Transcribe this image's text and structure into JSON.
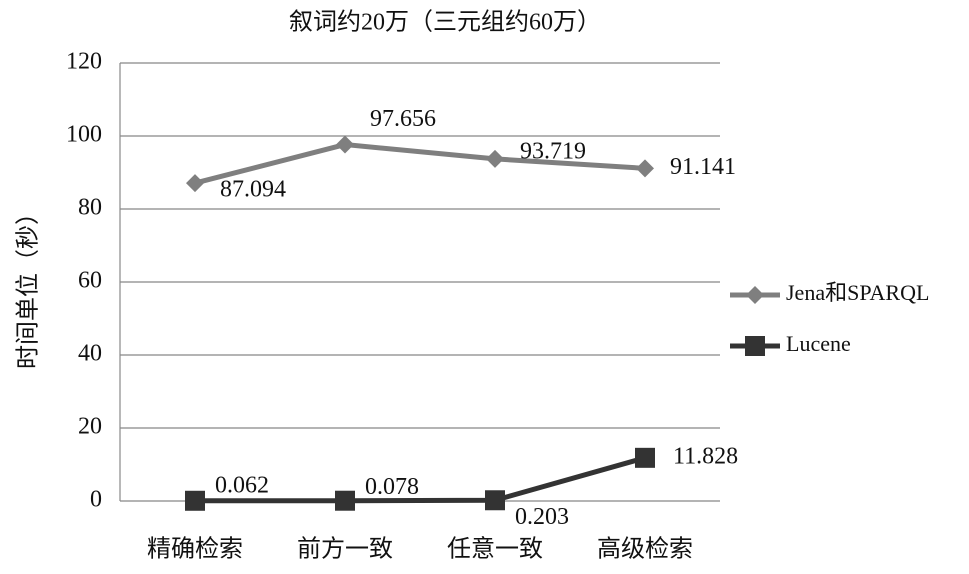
{
  "chart_data": {
    "type": "line",
    "title": "叙词约20万（三元组约60万）",
    "y_label": "时间单位（秒）",
    "categories": [
      "精确检索",
      "前方一致",
      "任意一致",
      "高级检索"
    ],
    "series": [
      {
        "name": "Jena和SPARQL",
        "color": "#7f7f7f",
        "marker": "diamond",
        "values": [
          87.094,
          97.656,
          93.719,
          91.141
        ]
      },
      {
        "name": "Lucene",
        "color": "#333333",
        "marker": "square",
        "values": [
          0.062,
          0.078,
          0.203,
          11.828
        ]
      }
    ],
    "ylim": [
      0,
      120
    ],
    "yticks": [
      0,
      20,
      40,
      60,
      80,
      100,
      120
    ],
    "grid": true,
    "legend": "right"
  }
}
